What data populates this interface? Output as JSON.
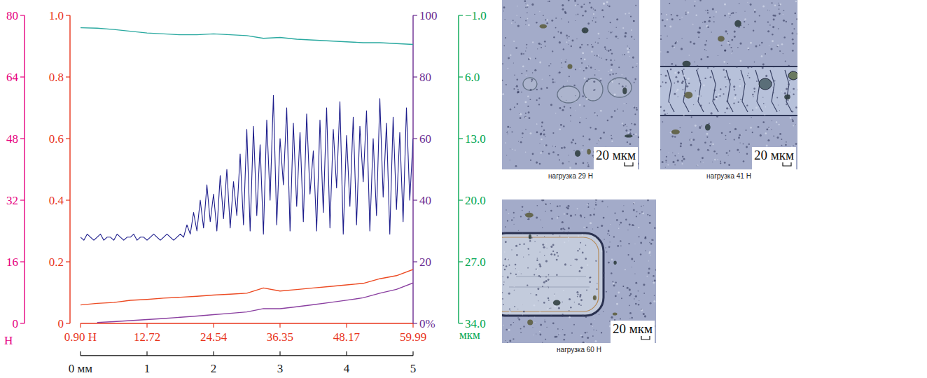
{
  "chart_data": [
    {
      "type": "line",
      "color": "#e6007e",
      "ylabel": "Н",
      "xlim": [
        0,
        5
      ],
      "xticks": [
        {
          "value": 0,
          "label": "0 мм"
        },
        1,
        2,
        3,
        4,
        5
      ],
      "ylim": [
        0,
        80
      ],
      "yticks": [
        0,
        16,
        32,
        48,
        64,
        80
      ],
      "x": [
        0,
        0.25,
        0.5,
        0.75,
        1,
        1.25,
        1.5,
        1.75,
        2,
        2.25,
        2.5,
        2.75,
        3,
        3.25,
        3.5,
        3.75,
        4,
        4.25,
        4.5,
        4.75,
        5
      ],
      "series": [
        {
          "color": "#8a3fa0",
          "values": [
            null,
            0.25,
            0.46,
            0.73,
            0.99,
            1.28,
            1.58,
            1.9,
            2.26,
            2.61,
            2.98,
            3.84,
            3.82,
            4.32,
            4.86,
            5.43,
            6.02,
            6.65,
            7.84,
            8.84,
            10.5
          ]
        }
      ]
    },
    {
      "type": "line",
      "color": "#e8341c",
      "xlim": [
        0.9,
        59.99
      ],
      "xticks": [
        {
          "value": 0.9,
          "label": "0.90 Н"
        },
        12.72,
        24.54,
        36.35,
        48.17,
        59.99
      ],
      "ylim": [
        0,
        1
      ],
      "yticks": [
        0,
        0.2,
        0.4,
        0.6,
        0.8,
        {
          "value": 1,
          "label": "1.0"
        }
      ],
      "x": [
        0.9,
        3.85,
        6.81,
        9.76,
        12.72,
        15.67,
        18.63,
        21.58,
        24.54,
        27.49,
        30.45,
        33.4,
        36.35,
        39.31,
        42.26,
        45.22,
        48.17,
        51.13,
        54.08,
        57.04,
        59.99
      ],
      "series": [
        {
          "color": "#ec4a22",
          "values": [
            0.06,
            0.065,
            0.068,
            0.075,
            0.078,
            0.082,
            0.085,
            0.088,
            0.092,
            0.095,
            0.098,
            0.115,
            0.105,
            0.11,
            0.115,
            0.12,
            0.125,
            0.13,
            0.145,
            0.155,
            0.175
          ]
        }
      ]
    },
    {
      "type": "line",
      "color": "#6b2c91",
      "tick_labels": "y",
      "xlim": [
        0,
        5
      ],
      "ylim": [
        0,
        100
      ],
      "yticks": [
        {
          "value": 0,
          "label": "0%"
        },
        20,
        40,
        60,
        80,
        100
      ],
      "x": [
        0,
        0.05,
        0.1,
        0.15,
        0.2,
        0.25,
        0.3,
        0.35,
        0.4,
        0.45,
        0.5,
        0.55,
        0.6,
        0.65,
        0.7,
        0.75,
        0.8,
        0.85,
        0.9,
        0.95,
        1,
        1.05,
        1.1,
        1.15,
        1.2,
        1.25,
        1.3,
        1.35,
        1.4,
        1.45,
        1.5,
        1.55,
        1.6,
        1.65,
        1.7,
        1.75,
        1.8,
        1.85,
        1.9,
        1.95,
        2,
        2.05,
        2.1,
        2.15,
        2.2,
        2.25,
        2.3,
        2.35,
        2.4,
        2.45,
        2.5,
        2.55,
        2.6,
        2.65,
        2.7,
        2.75,
        2.8,
        2.85,
        2.9,
        2.95,
        3,
        3.05,
        3.1,
        3.15,
        3.2,
        3.25,
        3.3,
        3.35,
        3.4,
        3.45,
        3.5,
        3.55,
        3.6,
        3.65,
        3.7,
        3.75,
        3.8,
        3.85,
        3.9,
        3.95,
        4,
        4.05,
        4.1,
        4.15,
        4.2,
        4.25,
        4.3,
        4.35,
        4.4,
        4.45,
        4.5,
        4.55,
        4.6,
        4.65,
        4.7,
        4.75,
        4.8,
        4.85,
        4.9,
        4.95,
        5
      ],
      "series": [
        {
          "color": "#1e1e8c",
          "values": [
            28,
            27,
            29,
            28,
            27,
            28,
            29,
            27,
            28,
            28,
            27,
            29,
            28,
            27,
            28,
            28,
            29,
            27,
            28,
            28,
            27,
            28,
            29,
            28,
            27,
            28,
            29,
            28,
            27,
            28,
            29,
            28,
            32,
            29,
            36,
            30,
            40,
            31,
            45,
            33,
            42,
            30,
            48,
            34,
            50,
            31,
            46,
            35,
            55,
            32,
            63,
            30,
            64,
            35,
            58,
            29,
            66,
            40,
            74,
            32,
            60,
            45,
            70,
            30,
            65,
            38,
            62,
            33,
            68,
            42,
            56,
            30,
            66,
            36,
            70,
            31,
            63,
            44,
            72,
            29,
            61,
            38,
            67,
            32,
            64,
            46,
            69,
            30,
            60,
            35,
            73,
            41,
            65,
            29,
            67,
            37,
            62,
            33,
            70,
            40,
            60
          ]
        }
      ]
    },
    {
      "type": "line",
      "color": "#00a651",
      "tick_labels": "y",
      "ylabel": "мкм",
      "xlim": [
        0,
        5
      ],
      "ylim": [
        34,
        -1
      ],
      "yticks": [
        {
          "value": -1,
          "label": "−1.0"
        },
        {
          "value": 6,
          "label": "6.0"
        },
        {
          "value": 13,
          "label": "13.0"
        },
        {
          "value": 20,
          "label": "20.0"
        },
        {
          "value": 27,
          "label": "27.0"
        },
        {
          "value": 34,
          "label": "34.0"
        }
      ],
      "x": [
        0,
        0.25,
        0.5,
        0.75,
        1,
        1.25,
        1.5,
        1.75,
        2,
        2.25,
        2.5,
        2.75,
        3,
        3.25,
        3.5,
        3.75,
        4,
        4.25,
        4.5,
        4.75,
        5
      ],
      "series": [
        {
          "color": "#2aa9a0",
          "values": [
            0.4,
            0.45,
            0.6,
            0.8,
            1.0,
            1.1,
            1.2,
            1.2,
            1.1,
            1.2,
            1.3,
            1.6,
            1.5,
            1.7,
            1.8,
            1.9,
            2.0,
            2.1,
            2.1,
            2.2,
            2.3
          ]
        }
      ]
    }
  ],
  "micrographs": [
    {
      "caption": "нагрузка 29 Н",
      "scale_bar": "20 мкм"
    },
    {
      "caption": "нагрузка 41 Н",
      "scale_bar": "20 мкм"
    },
    {
      "caption": "нагрузка 60 Н",
      "scale_bar": "20 мкм"
    }
  ]
}
